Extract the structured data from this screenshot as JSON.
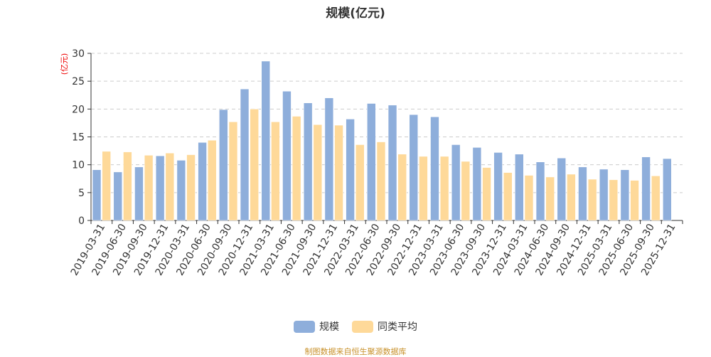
{
  "chart_data": {
    "type": "bar",
    "title": "规模(亿元)",
    "ylabel": "(亿元)",
    "ylim": [
      0,
      30
    ],
    "yticks": [
      0,
      5,
      10,
      15,
      20,
      25,
      30
    ],
    "grid": true,
    "legend_position": "bottom",
    "categories": [
      "2019-03-31",
      "2019-06-30",
      "2019-09-30",
      "2019-12-31",
      "2020-03-31",
      "2020-06-30",
      "2020-09-30",
      "2020-12-31",
      "2021-03-31",
      "2021-06-30",
      "2021-09-30",
      "2021-12-31",
      "2022-03-31",
      "2022-06-30",
      "2022-09-30",
      "2022-12-31",
      "2023-03-31",
      "2023-06-30",
      "2023-09-30",
      "2023-12-31",
      "2024-03-31",
      "2024-06-30",
      "2024-09-30",
      "2024-12-31",
      "2025-03-31",
      "2025-06-30",
      "2025-09-30",
      "2025-12-31"
    ],
    "series": [
      {
        "name": "规模",
        "color": "#8eaedb",
        "values": [
          9.1,
          8.7,
          9.6,
          11.6,
          10.8,
          14.0,
          19.9,
          23.6,
          28.6,
          23.2,
          21.1,
          22.0,
          18.2,
          21.0,
          20.7,
          19.0,
          18.6,
          13.6,
          13.1,
          12.2,
          11.9,
          10.5,
          11.2,
          9.6,
          9.2,
          9.1,
          11.4,
          11.1
        ]
      },
      {
        "name": "同类平均",
        "color": "#fed999",
        "values": [
          12.4,
          12.3,
          11.7,
          12.1,
          11.8,
          14.4,
          17.7,
          20.0,
          17.7,
          18.7,
          17.2,
          17.1,
          13.6,
          14.1,
          11.9,
          11.5,
          11.5,
          10.6,
          9.5,
          8.6,
          8.1,
          7.8,
          8.3,
          7.4,
          7.3,
          7.2,
          8.0,
          null
        ]
      }
    ]
  },
  "footer": {
    "source": "制图数据来自恒生聚源数据库"
  }
}
